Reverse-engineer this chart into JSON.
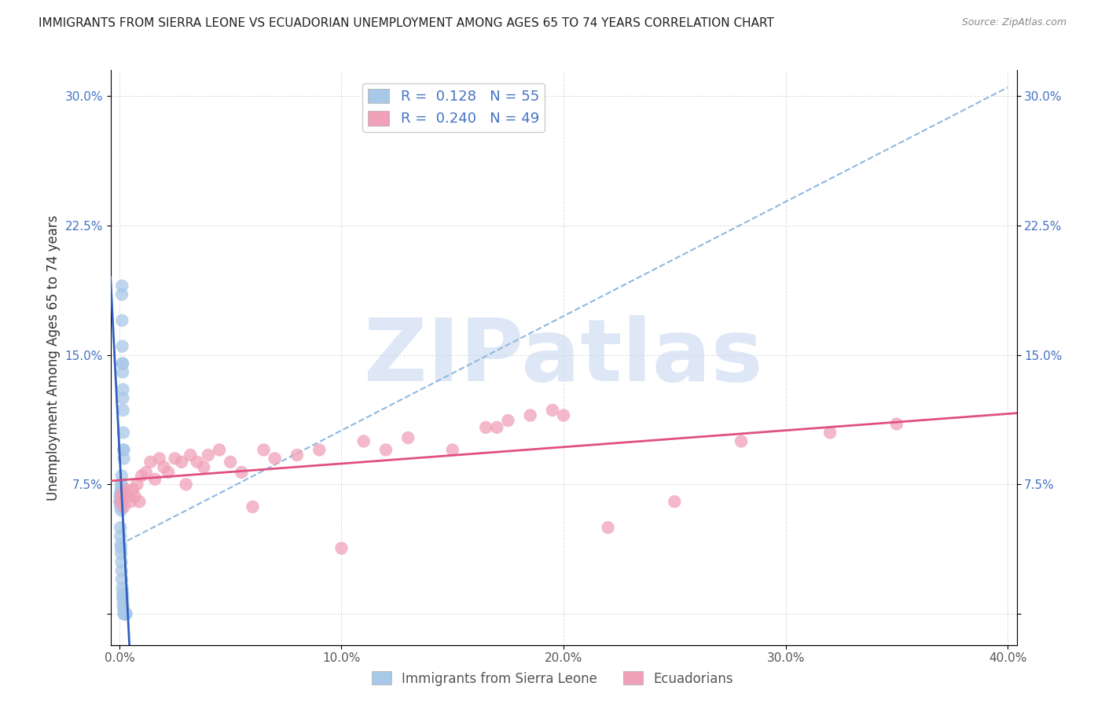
{
  "title": "IMMIGRANTS FROM SIERRA LEONE VS ECUADORIAN UNEMPLOYMENT AMONG AGES 65 TO 74 YEARS CORRELATION CHART",
  "source": "Source: ZipAtlas.com",
  "ylabel": "Unemployment Among Ages 65 to 74 years",
  "xlim": [
    -0.004,
    0.404
  ],
  "ylim": [
    -0.018,
    0.315
  ],
  "xticks": [
    0.0,
    0.1,
    0.2,
    0.3,
    0.4
  ],
  "xticklabels": [
    "0.0%",
    "10.0%",
    "20.0%",
    "30.0%",
    "40.0%"
  ],
  "yticks": [
    0.0,
    0.075,
    0.15,
    0.225,
    0.3
  ],
  "yticklabels": [
    "",
    "7.5%",
    "15.0%",
    "22.5%",
    "30.0%"
  ],
  "watermark": "ZIPatlas",
  "series": [
    {
      "name": "Immigrants from Sierra Leone",
      "color": "#a8c8e8",
      "trend_color": "#3060c0",
      "trend_style": "-",
      "R": 0.128,
      "N": 55,
      "x": [
        0.0002,
        0.0003,
        0.0004,
        0.0005,
        0.0005,
        0.0006,
        0.0006,
        0.0007,
        0.0007,
        0.0008,
        0.0008,
        0.0009,
        0.0009,
        0.001,
        0.001,
        0.001,
        0.0011,
        0.0012,
        0.0012,
        0.0013,
        0.0014,
        0.0015,
        0.0015,
        0.0016,
        0.0016,
        0.0017,
        0.0018,
        0.0018,
        0.002,
        0.002,
        0.0005,
        0.0005,
        0.0006,
        0.0007,
        0.0008,
        0.0009,
        0.001,
        0.0011,
        0.0013,
        0.0015,
        0.0015,
        0.0016,
        0.0017,
        0.0018,
        0.002,
        0.0021,
        0.0022,
        0.0023,
        0.0024,
        0.0025,
        0.0026,
        0.0027,
        0.0028,
        0.003,
        0.003
      ],
      "y": [
        0.065,
        0.068,
        0.07,
        0.062,
        0.065,
        0.07,
        0.068,
        0.075,
        0.065,
        0.072,
        0.06,
        0.068,
        0.072,
        0.08,
        0.065,
        0.075,
        0.185,
        0.19,
        0.17,
        0.155,
        0.145,
        0.145,
        0.14,
        0.13,
        0.125,
        0.118,
        0.105,
        0.095,
        0.095,
        0.09,
        0.05,
        0.045,
        0.04,
        0.038,
        0.035,
        0.03,
        0.025,
        0.02,
        0.015,
        0.012,
        0.01,
        0.008,
        0.005,
        0.003,
        0.0,
        0.0,
        0.0,
        0.0,
        0.0,
        0.0,
        0.0,
        0.0,
        0.0,
        0.0,
        0.0
      ]
    },
    {
      "name": "Ecuadorians",
      "color": "#f0a0b8",
      "trend_color": "#e05080",
      "trend_style": "-",
      "R": 0.24,
      "N": 49,
      "x": [
        0.0005,
        0.001,
        0.0015,
        0.002,
        0.003,
        0.004,
        0.005,
        0.006,
        0.007,
        0.008,
        0.009,
        0.01,
        0.012,
        0.014,
        0.016,
        0.018,
        0.02,
        0.022,
        0.025,
        0.028,
        0.03,
        0.032,
        0.035,
        0.038,
        0.04,
        0.045,
        0.05,
        0.055,
        0.06,
        0.065,
        0.07,
        0.08,
        0.09,
        0.1,
        0.11,
        0.12,
        0.13,
        0.15,
        0.17,
        0.2,
        0.22,
        0.25,
        0.28,
        0.32,
        0.35,
        0.165,
        0.175,
        0.185,
        0.195
      ],
      "y": [
        0.065,
        0.068,
        0.07,
        0.062,
        0.072,
        0.068,
        0.065,
        0.072,
        0.068,
        0.075,
        0.065,
        0.08,
        0.082,
        0.088,
        0.078,
        0.09,
        0.085,
        0.082,
        0.09,
        0.088,
        0.075,
        0.092,
        0.088,
        0.085,
        0.092,
        0.095,
        0.088,
        0.082,
        0.062,
        0.095,
        0.09,
        0.092,
        0.095,
        0.038,
        0.1,
        0.095,
        0.102,
        0.095,
        0.108,
        0.115,
        0.05,
        0.065,
        0.1,
        0.105,
        0.11,
        0.108,
        0.112,
        0.115,
        0.118
      ]
    }
  ],
  "dashed_line": {
    "color": "#90b8e0",
    "style": "--",
    "x_start": 0.0,
    "y_start": 0.04,
    "x_end": 0.4,
    "y_end": 0.305
  },
  "background_color": "#ffffff",
  "grid_color": "#e0e0e0",
  "title_fontsize": 11,
  "axis_label_fontsize": 12,
  "tick_fontsize": 11,
  "watermark_color": "#c8d8f0",
  "watermark_fontsize": 80
}
